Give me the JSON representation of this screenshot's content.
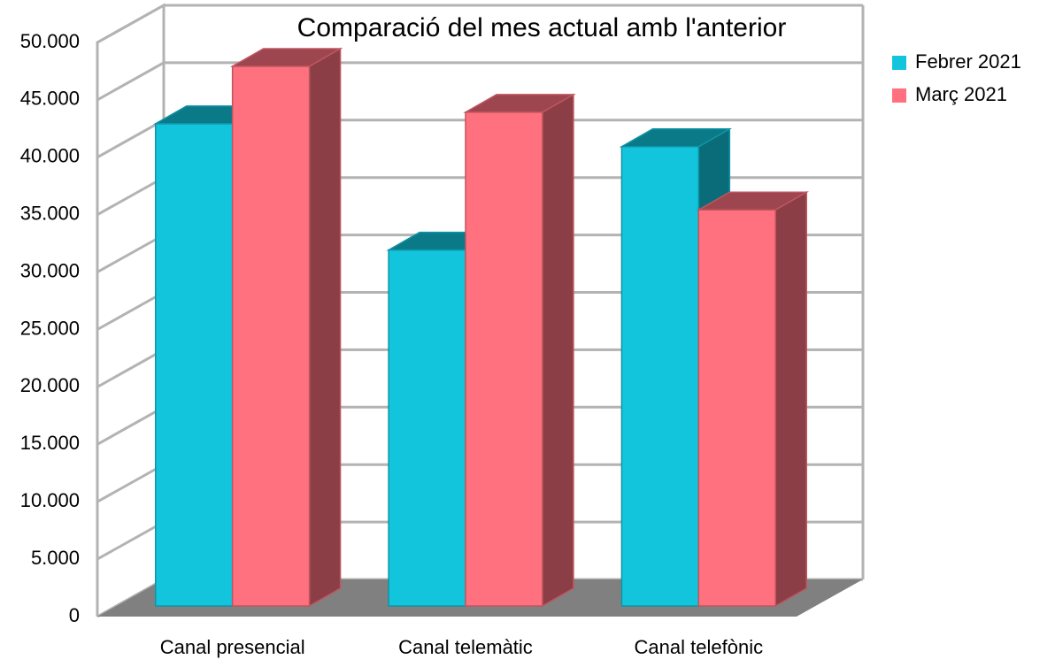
{
  "chart_data": {
    "type": "bar3d",
    "title": "Comparació del mes actual amb l'anterior",
    "categories": [
      "Canal presencial",
      "Canal telemàtic",
      "Canal telefònic"
    ],
    "series": [
      {
        "name": "Febrer 2021",
        "color": "#12c5dc",
        "values": [
          42000,
          31000,
          40000
        ]
      },
      {
        "name": "Març 2021",
        "color": "#ff717f",
        "values": [
          47000,
          43000,
          34500
        ]
      }
    ],
    "ylim": [
      0,
      50000
    ],
    "yticks": [
      0,
      {
        "value": 5000,
        "label": "5.000"
      },
      {
        "value": 10000,
        "label": "10.000"
      },
      {
        "value": 15000,
        "label": "15.000"
      },
      {
        "value": 20000,
        "label": "20.000"
      },
      {
        "value": 25000,
        "label": "25.000"
      },
      {
        "value": 30000,
        "label": "30.000"
      },
      {
        "value": 35000,
        "label": "35.000"
      },
      {
        "value": 40000,
        "label": "40.000"
      },
      {
        "value": 45000,
        "label": "45.000"
      },
      {
        "value": 50000,
        "label": "50.000"
      }
    ],
    "grid": true
  }
}
